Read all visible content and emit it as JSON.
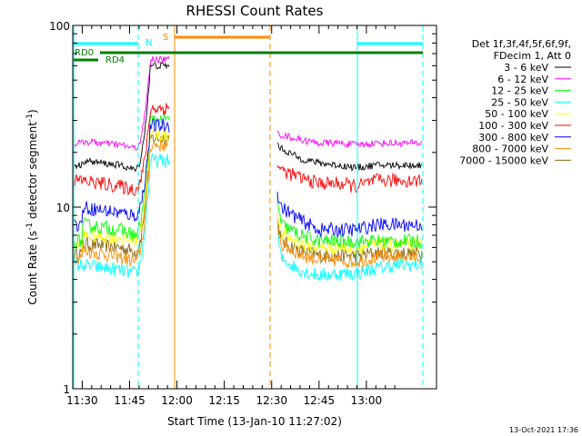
{
  "chart_data": {
    "type": "line",
    "title": "RHESSI Count Rates",
    "xlabel": "Start Time (13-Jan-10 11:27:02)",
    "ylabel": "Count Rate (s",
    "ylabel_sup": "-1",
    "ylabel_mid": " detector segment",
    "ylabel_sup2": "-1",
    "ylabel_end": ")",
    "yscale": "log",
    "ylim": [
      1,
      100
    ],
    "xlim_minutes": [
      11.45,
      13.37
    ],
    "x_ticks": [
      {
        "label": "11:30",
        "min": 11.5
      },
      {
        "label": "11:45",
        "min": 11.75
      },
      {
        "label": "12:00",
        "min": 12.0
      },
      {
        "label": "12:15",
        "min": 12.25
      },
      {
        "label": "12:30",
        "min": 12.5
      },
      {
        "label": "12:45",
        "min": 12.75
      },
      {
        "label": "13:00",
        "min": 13.0
      }
    ],
    "y_ticks": [
      {
        "label": "1",
        "value": 1
      },
      {
        "label": "10",
        "value": 10
      },
      {
        "label": "100",
        "value": 100
      }
    ],
    "legend_header": [
      "Det 1f,3f,4f,5f,6f,9f,",
      "FDecim 1, Att 0"
    ],
    "legend_placement": "right",
    "timestamp": "13-Oct-2021 17:36",
    "series": [
      {
        "name": "3 - 6 keV",
        "color": "#000000",
        "values": [
          18,
          17,
          16,
          17,
          24,
          21,
          18.5,
          17.5,
          17,
          16.5,
          17,
          17
        ]
      },
      {
        "name": "6 - 12 keV",
        "color": "#ff00ff",
        "values": [
          23,
          22,
          21,
          22,
          27,
          25,
          23.5,
          22.5,
          22.5,
          22,
          22.5,
          22.5
        ]
      },
      {
        "name": "12 - 25 keV",
        "color": "#00ff00",
        "values": [
          8,
          7.5,
          7,
          7.5,
          19,
          8,
          7,
          6.5,
          6.5,
          6.5,
          6.5,
          6.5
        ]
      },
      {
        "name": "25 - 50 keV",
        "color": "#00ffff",
        "values": [
          4.8,
          4.5,
          4.3,
          4.6,
          12,
          5.2,
          4.5,
          4.2,
          4.3,
          4.3,
          4.6,
          4.8
        ]
      },
      {
        "name": "50 - 100 keV",
        "color": "#ffff00",
        "values": [
          7,
          6.8,
          6.5,
          7,
          14,
          7.2,
          6.3,
          6,
          6,
          6,
          6.2,
          6.2
        ]
      },
      {
        "name": "100 - 300 keV",
        "color": "#ff0000",
        "values": [
          14,
          13,
          12.5,
          13,
          20,
          16,
          14.5,
          13.5,
          13.5,
          13,
          14,
          14
        ]
      },
      {
        "name": "300 - 800 keV",
        "color": "#0000ff",
        "values": [
          10,
          9.3,
          9,
          9.5,
          16,
          10,
          8.5,
          7.5,
          7.5,
          7.5,
          8,
          8
        ]
      },
      {
        "name": "800 - 7000 keV",
        "color": "#ff8c00",
        "values": [
          5.8,
          5.3,
          5,
          5.3,
          13,
          6.2,
          5.5,
          5.1,
          5.1,
          5,
          5.3,
          5.3
        ]
      },
      {
        "name": "7000 - 15000 keV",
        "color": "#8b6914",
        "values": [
          6.3,
          6,
          5.7,
          6,
          13.5,
          6.5,
          5.8,
          5.4,
          5.4,
          5.4,
          5.6,
          5.6
        ]
      }
    ],
    "annotations": {
      "N": {
        "label": "N",
        "color": "#00ffff"
      },
      "S": {
        "label": "S",
        "color": "#ff8c00"
      },
      "RD0": {
        "label": "RD0",
        "color": "#008000"
      },
      "RD4": {
        "label": "RD4",
        "color": "#008000"
      }
    }
  }
}
